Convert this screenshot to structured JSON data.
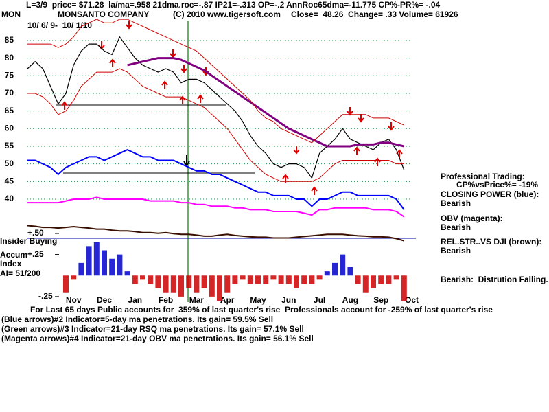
{
  "chart_data": {
    "type": "line",
    "header": "L=3/9  price= $71.28  la/ma=.958 21dma.roc=-.87 IP21=-.313 OP=-.2 AnnRoc65dma=-11.775 CP%-PR%= -.04",
    "ticker": "MON",
    "title": "MONSANTO COMPANY",
    "copyright": "(C) 2010 www.tigersoft.com",
    "quote": "Close=  48.26  Change= .33 Volume= 61926",
    "date_range": "10/ 6/ 9-  10/ 1/10",
    "side_notes": [
      "Professional Trading:",
      "CP%vsPrice%= -19%",
      "CLOSING POWER (blue):",
      "Bearish",
      "OBV (magenta):",
      "Bearish",
      "REL.STR..VS DJI (brown):",
      "Bearish",
      "Bearish:  Distrution Falling."
    ],
    "panel_labels": [
      "Insider Buying",
      "Accum",
      "Index",
      "AI= 51/200"
    ],
    "footer": [
      "For Last 65 days Public accounts for  359% of last quarter's rise  Professionals account for -259% of last quarter's rise",
      "(Blue arrows)#2 Indicator=5-day ma penetrations. Its gain= 59.5% Sell",
      "(Green arrows)#3 Indicator=21-day RSQ ma penetrations. Its gain= 57.1% Sell",
      "(Magenta arrows)#4 Indicator=21-day OBV ma penetrations. Its gain= 56.1% Sell"
    ],
    "categories": [
      null,
      null,
      null,
      null,
      null,
      null,
      "Nov",
      null,
      null,
      null,
      "Dec",
      null,
      null,
      null,
      "Jan",
      null,
      null,
      null,
      "Feb",
      null,
      null,
      null,
      "Mar",
      null,
      null,
      null,
      "Apr",
      null,
      null,
      null,
      "May",
      null,
      null,
      null,
      "Jun",
      null,
      null,
      null,
      "Jul",
      null,
      null,
      null,
      "Aug",
      null,
      null,
      null,
      "Sep",
      null,
      null,
      null,
      "Oct"
    ],
    "ylim": [
      25,
      92
    ],
    "yticks": [
      85,
      80,
      75,
      70,
      65,
      60,
      55,
      50,
      45,
      40
    ],
    "y2lim": [
      -0.3,
      0.5
    ],
    "y2ticks": [
      {
        "value": 0.5,
        "label": "+.50"
      },
      {
        "value": 0.25,
        "label": "+.25"
      },
      {
        "value": -0.25,
        "label": "-.25"
      }
    ],
    "grid": true,
    "series": [
      {
        "color": "#000000",
        "values": [
          77,
          79,
          77,
          72,
          67,
          70,
          78,
          82,
          84,
          84,
          82,
          81,
          86,
          83,
          80,
          78,
          77,
          76,
          77,
          76,
          73,
          74,
          74,
          73,
          71,
          69,
          67,
          65,
          62,
          58,
          55,
          53,
          50,
          49,
          50,
          50,
          49,
          46,
          53,
          55,
          57,
          60,
          57,
          56,
          55,
          54,
          56,
          57,
          54,
          48.26,
          null
        ]
      },
      {
        "color": "#800080",
        "values": [
          null,
          null,
          null,
          null,
          null,
          null,
          null,
          null,
          null,
          null,
          null,
          null,
          null,
          78,
          78.5,
          79,
          79.5,
          80,
          80,
          80,
          79.5,
          78.5,
          77.5,
          76.5,
          75,
          73.5,
          72,
          70.5,
          69,
          67.5,
          66,
          64.5,
          63,
          61.5,
          60,
          59,
          58,
          57,
          56,
          55,
          55,
          55,
          55,
          55.5,
          55.5,
          55.5,
          56,
          56,
          55.5,
          55,
          null
        ]
      },
      {
        "color": "#cc0000",
        "values": [
          84,
          84,
          84,
          84,
          83,
          84,
          86,
          89,
          90,
          91,
          90,
          90,
          91,
          91,
          90,
          89,
          88,
          87,
          86,
          85,
          84,
          83,
          82,
          80,
          78,
          76,
          74,
          72,
          70,
          68,
          65,
          63,
          62,
          60,
          59,
          58,
          57,
          56,
          58,
          60,
          62,
          64,
          64,
          64,
          64,
          63,
          63,
          63,
          62,
          61,
          null
        ]
      },
      {
        "color": "#cc0000",
        "values": [
          70,
          70,
          69,
          67,
          64,
          65,
          68,
          72,
          74,
          76,
          76,
          76,
          77,
          76,
          74,
          72,
          71,
          70,
          69,
          69,
          69,
          68,
          67,
          66,
          64,
          62,
          60,
          57,
          54,
          51,
          49,
          47,
          46,
          45,
          45,
          45,
          45,
          45,
          46,
          48,
          50,
          51,
          51,
          51,
          51,
          51,
          51,
          51,
          50,
          50,
          null
        ]
      },
      {
        "color": "#0000ff",
        "values": [
          51,
          51,
          50,
          49,
          47,
          49,
          50,
          51,
          52,
          52,
          51,
          52,
          53,
          54,
          53,
          52,
          52,
          51,
          51,
          51,
          50,
          49,
          48,
          48,
          47,
          47,
          46,
          45,
          44,
          43,
          42,
          42,
          41,
          41,
          41,
          40,
          40,
          38,
          40,
          40,
          41,
          42,
          42,
          41,
          41,
          41,
          41,
          41,
          40,
          37,
          null
        ]
      },
      {
        "color": "#ff00ff",
        "values": [
          39,
          39,
          39,
          39,
          39,
          39.5,
          40,
          40,
          40,
          40.5,
          40,
          40,
          40,
          40,
          40,
          40,
          39.5,
          39.5,
          39.5,
          39.5,
          39,
          39,
          38.5,
          38.5,
          38,
          38,
          38,
          37.5,
          37.5,
          37,
          37,
          37,
          36.5,
          36.5,
          36.5,
          36.5,
          36,
          35.5,
          37,
          37,
          37.5,
          37.5,
          37.5,
          37.5,
          37.5,
          37,
          37,
          37,
          36.5,
          35,
          null
        ]
      },
      {
        "color": "#3a0f00",
        "values": [
          32.5,
          32.3,
          32,
          32,
          31.8,
          32,
          32.2,
          32,
          31.8,
          31.5,
          31.5,
          31.2,
          31,
          31,
          30.8,
          30.5,
          30.5,
          30.3,
          30.5,
          30.2,
          30,
          30,
          29.8,
          29.5,
          29.5,
          29.8,
          30,
          29.7,
          29.5,
          29.3,
          29.2,
          29.2,
          29,
          29,
          29,
          29.2,
          29.4,
          29.6,
          29.8,
          30,
          30,
          30,
          29.8,
          29.6,
          29.5,
          29.3,
          29.3,
          29.2,
          28.8,
          28.2,
          null
        ]
      },
      {
        "type": "bar",
        "axis": "y2",
        "color": "#0000cc",
        "negative_color": "#cc0000",
        "values": [
          null,
          null,
          null,
          null,
          null,
          -0.2,
          -0.05,
          0.15,
          0.35,
          0.4,
          0.3,
          0.2,
          0.25,
          0.05,
          -0.1,
          -0.05,
          -0.1,
          -0.15,
          -0.2,
          -0.2,
          -0.25,
          -0.15,
          -0.2,
          -0.15,
          -0.25,
          -0.3,
          -0.2,
          -0.1,
          -0.05,
          -0.1,
          -0.1,
          -0.1,
          -0.05,
          -0.1,
          -0.1,
          -0.15,
          -0.1,
          -0.1,
          -0.05,
          0.05,
          0.15,
          0.25,
          0.1,
          -0.1,
          -0.2,
          -0.15,
          -0.1,
          -0.1,
          -0.05,
          -0.3,
          null
        ]
      }
    ]
  }
}
